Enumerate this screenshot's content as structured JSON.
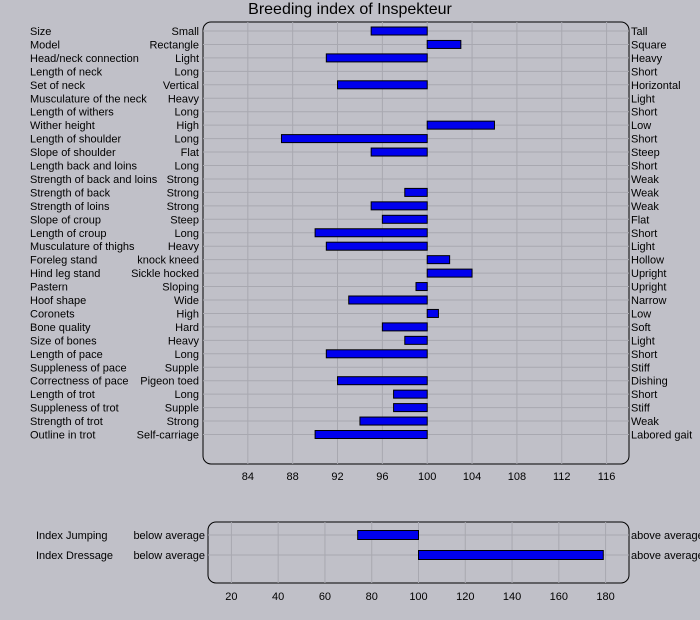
{
  "chart_data": [
    {
      "type": "bar",
      "orientation": "horizontal",
      "title": "Breeding index of Inspekteur",
      "baseline": 100,
      "xlim": [
        80,
        118
      ],
      "xticks": [
        84,
        88,
        92,
        96,
        100,
        104,
        108,
        112,
        116
      ],
      "grid": true,
      "bar_color": "#0000ee",
      "rows": [
        {
          "trait": "Size",
          "low": "Small",
          "high": "Tall",
          "value": 95
        },
        {
          "trait": "Model",
          "low": "Rectangle",
          "high": "Square",
          "value": 103
        },
        {
          "trait": "Head/neck connection",
          "low": "Light",
          "high": "Heavy",
          "value": 91
        },
        {
          "trait": "Length of neck",
          "low": "Long",
          "high": "Short",
          "value": 100
        },
        {
          "trait": "Set of neck",
          "low": "Vertical",
          "high": "Horizontal",
          "value": 92
        },
        {
          "trait": "Musculature of the neck",
          "low": "Heavy",
          "high": "Light",
          "value": 100
        },
        {
          "trait": "Length of withers",
          "low": "Long",
          "high": "Short",
          "value": 100
        },
        {
          "trait": "Wither height",
          "low": "High",
          "high": "Low",
          "value": 106
        },
        {
          "trait": "Length of shoulder",
          "low": "Long",
          "high": "Short",
          "value": 87
        },
        {
          "trait": "Slope of shoulder",
          "low": "Flat",
          "high": "Steep",
          "value": 95
        },
        {
          "trait": "Length back and loins",
          "low": "Long",
          "high": "Short",
          "value": 100
        },
        {
          "trait": "Strength of back and loins",
          "low": "Strong",
          "high": "Weak",
          "value": 100
        },
        {
          "trait": "Strength of back",
          "low": "Strong",
          "high": "Weak",
          "value": 98
        },
        {
          "trait": "Strength of loins",
          "low": "Strong",
          "high": "Weak",
          "value": 95
        },
        {
          "trait": "Slope of croup",
          "low": "Steep",
          "high": "Flat",
          "value": 96
        },
        {
          "trait": "Length of croup",
          "low": "Long",
          "high": "Short",
          "value": 90
        },
        {
          "trait": "Musculature of thighs",
          "low": "Heavy",
          "high": "Light",
          "value": 91
        },
        {
          "trait": "Foreleg stand",
          "low": "knock kneed",
          "high": "Hollow",
          "value": 102
        },
        {
          "trait": "Hind leg stand",
          "low": "Sickle hocked",
          "high": "Upright",
          "value": 104
        },
        {
          "trait": "Pastern",
          "low": "Sloping",
          "high": "Upright",
          "value": 99
        },
        {
          "trait": "Hoof shape",
          "low": "Wide",
          "high": "Narrow",
          "value": 93
        },
        {
          "trait": "Coronets",
          "low": "High",
          "high": "Low",
          "value": 101
        },
        {
          "trait": "Bone quality",
          "low": "Hard",
          "high": "Soft",
          "value": 96
        },
        {
          "trait": "Size of bones",
          "low": "Heavy",
          "high": "Light",
          "value": 98
        },
        {
          "trait": "Length of pace",
          "low": "Long",
          "high": "Short",
          "value": 91
        },
        {
          "trait": "Suppleness of pace",
          "low": "Supple",
          "high": "Stiff",
          "value": 100
        },
        {
          "trait": "Correctness of pace",
          "low": "Pigeon toed",
          "high": "Dishing",
          "value": 92
        },
        {
          "trait": "Length of trot",
          "low": "Long",
          "high": "Short",
          "value": 97
        },
        {
          "trait": "Suppleness of trot",
          "low": "Supple",
          "high": "Stiff",
          "value": 97
        },
        {
          "trait": "Strength of trot",
          "low": "Strong",
          "high": "Weak",
          "value": 94
        },
        {
          "trait": "Outline in trot",
          "low": "Self-carriage",
          "high": "Labored gait",
          "value": 90
        }
      ]
    },
    {
      "type": "bar",
      "orientation": "horizontal",
      "title": "",
      "baseline": 100,
      "xlim": [
        10,
        190
      ],
      "xticks": [
        20,
        40,
        60,
        80,
        100,
        120,
        140,
        160,
        180
      ],
      "grid": true,
      "bar_color": "#0000ee",
      "rows": [
        {
          "trait": "Index Jumping",
          "low": "below average",
          "high": "above average",
          "value": 74
        },
        {
          "trait": "Index Dressage",
          "low": "below average",
          "high": "above average",
          "value": 179
        }
      ]
    }
  ]
}
